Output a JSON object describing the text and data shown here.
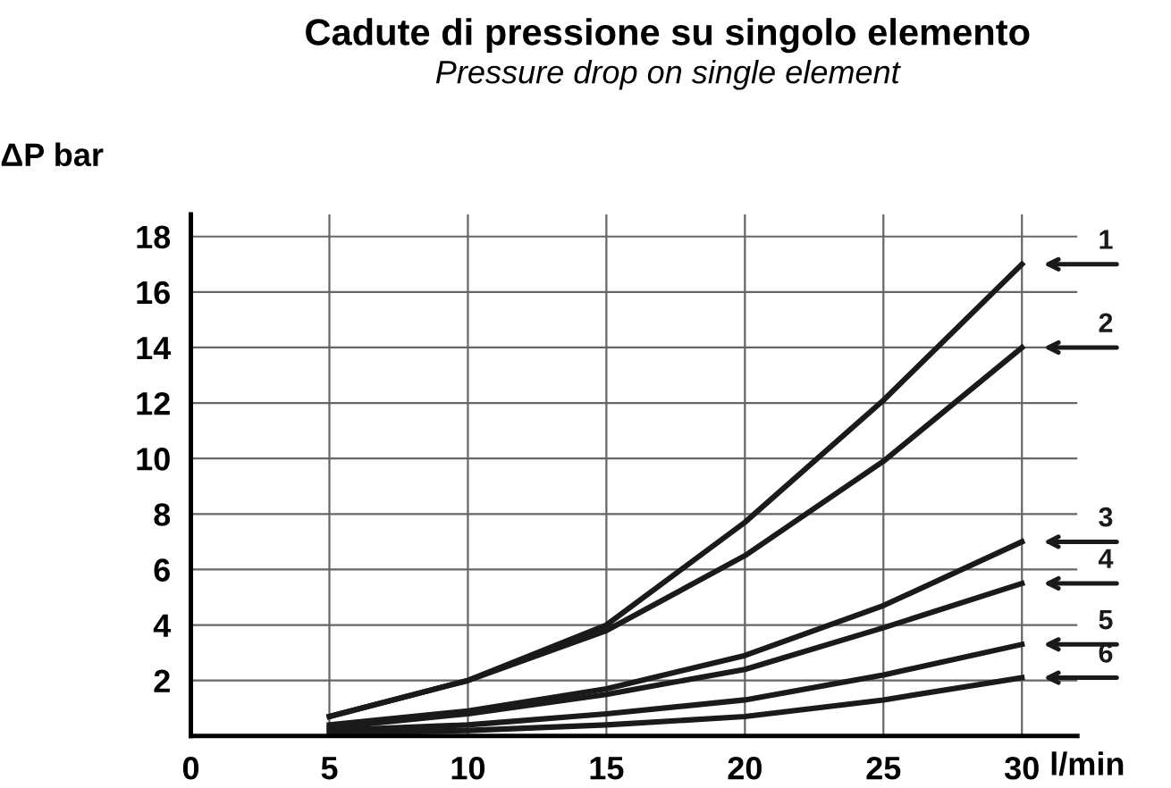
{
  "chart_data": {
    "type": "line",
    "title": "Cadute di pressione su singolo elemento",
    "subtitle": "Pressure drop on single element",
    "xlabel": "l/min",
    "ylabel": "ΔP bar",
    "x": [
      5,
      10,
      15,
      20,
      25,
      30
    ],
    "series": [
      {
        "name": "1",
        "color": "#1a1a1a",
        "values": [
          0.7,
          2.0,
          4.0,
          7.7,
          12.1,
          17.0
        ]
      },
      {
        "name": "2",
        "color": "#1a1a1a",
        "values": [
          0.7,
          2.0,
          3.8,
          6.5,
          9.9,
          14.0
        ]
      },
      {
        "name": "3",
        "color": "#1a1a1a",
        "values": [
          0.4,
          0.9,
          1.7,
          2.9,
          4.7,
          7.0
        ]
      },
      {
        "name": "4",
        "color": "#1a1a1a",
        "values": [
          0.3,
          0.8,
          1.5,
          2.4,
          3.9,
          5.5
        ]
      },
      {
        "name": "5",
        "color": "#1a1a1a",
        "values": [
          0.2,
          0.4,
          0.8,
          1.3,
          2.2,
          3.3
        ]
      },
      {
        "name": "6",
        "color": "#1a1a1a",
        "values": [
          0.1,
          0.2,
          0.4,
          0.7,
          1.3,
          2.1
        ]
      }
    ],
    "xlim": [
      0,
      32
    ],
    "ylim": [
      0,
      18.8
    ],
    "xticks": [
      0,
      5,
      10,
      15,
      20,
      25,
      30
    ],
    "yticks": [
      2,
      4,
      6,
      8,
      10,
      12,
      14,
      16,
      18
    ],
    "grid": true,
    "legend": "right",
    "marker": "none",
    "line_style": "solid"
  }
}
